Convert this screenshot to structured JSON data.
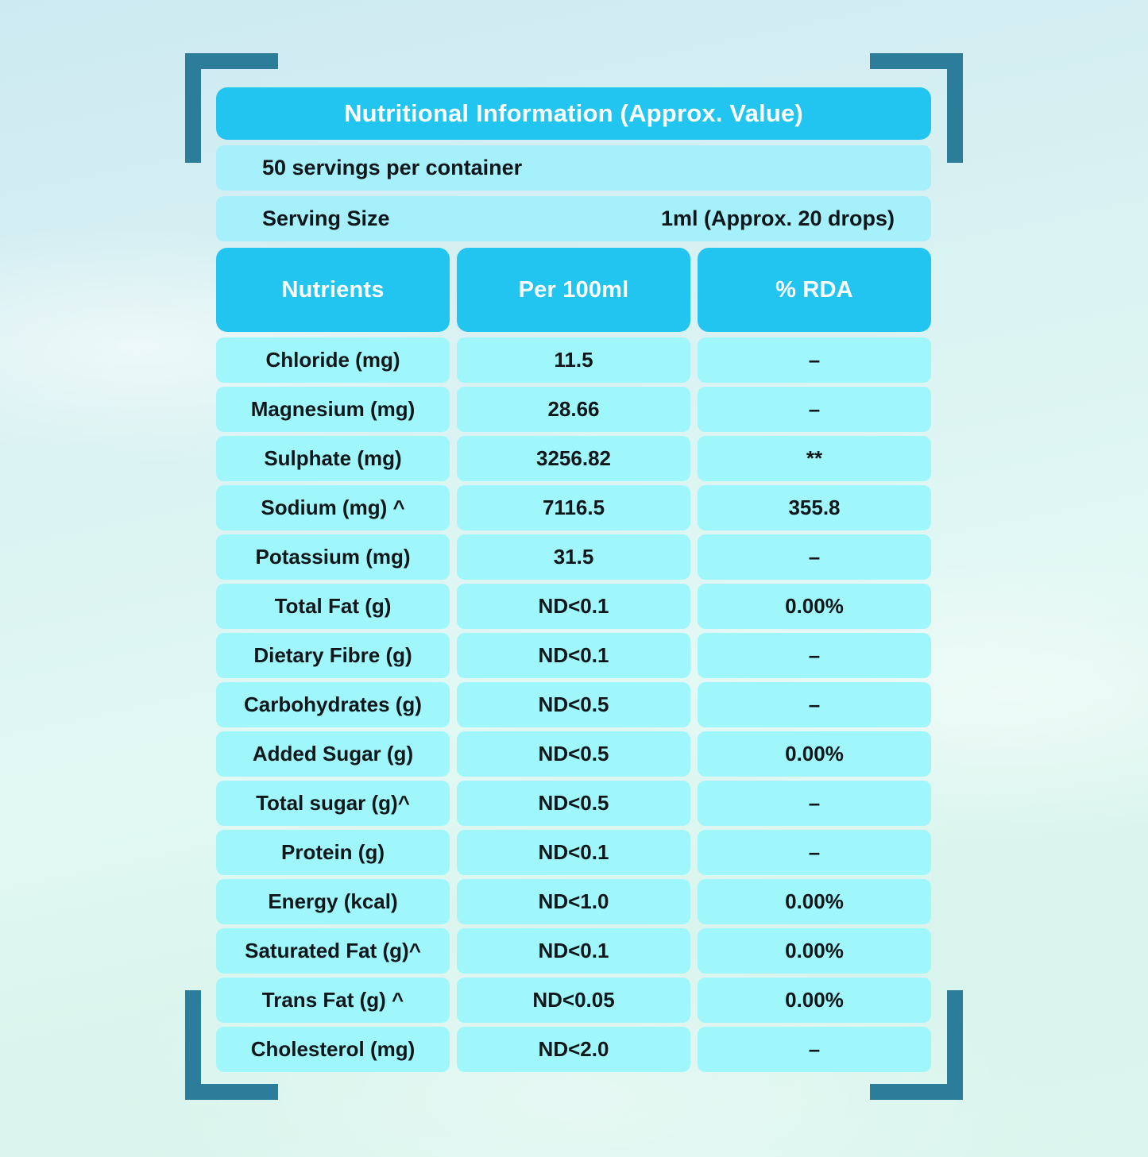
{
  "title": "Nutritional Information (Approx. Value)",
  "servings_line": "50 servings per container",
  "serving_size": {
    "label": "Serving Size",
    "value": "1ml (Approx. 20 drops)"
  },
  "columns": [
    "Nutrients",
    "Per 100ml",
    "% RDA"
  ],
  "rows": [
    {
      "nutrient": "Chloride (mg)",
      "per_100ml": "11.5",
      "rda": "–"
    },
    {
      "nutrient": "Magnesium (mg)",
      "per_100ml": "28.66",
      "rda": "–"
    },
    {
      "nutrient": "Sulphate (mg)",
      "per_100ml": "3256.82",
      "rda": "**"
    },
    {
      "nutrient": "Sodium (mg) ^",
      "per_100ml": "7116.5",
      "rda": "355.8"
    },
    {
      "nutrient": "Potassium (mg)",
      "per_100ml": "31.5",
      "rda": "–"
    },
    {
      "nutrient": "Total Fat (g)",
      "per_100ml": "ND<0.1",
      "rda": "0.00%"
    },
    {
      "nutrient": "Dietary Fibre (g)",
      "per_100ml": "ND<0.1",
      "rda": "–"
    },
    {
      "nutrient": "Carbohydrates (g)",
      "per_100ml": "ND<0.5",
      "rda": "–"
    },
    {
      "nutrient": "Added Sugar (g)",
      "per_100ml": "ND<0.5",
      "rda": "0.00%"
    },
    {
      "nutrient": "Total sugar (g)^",
      "per_100ml": "ND<0.5",
      "rda": "–"
    },
    {
      "nutrient": "Protein (g)",
      "per_100ml": "ND<0.1",
      "rda": "–"
    },
    {
      "nutrient": "Energy (kcal)",
      "per_100ml": "ND<1.0",
      "rda": "0.00%"
    },
    {
      "nutrient": "Saturated Fat (g)^",
      "per_100ml": "ND<0.1",
      "rda": "0.00%"
    },
    {
      "nutrient": "Trans Fat (g) ^",
      "per_100ml": "ND<0.05",
      "rda": "0.00%"
    },
    {
      "nutrient": "Cholesterol (mg)",
      "per_100ml": "ND<2.0",
      "rda": "–"
    }
  ],
  "colors": {
    "header_cyan": "#22c4f0",
    "row_aqua": "#9ff7fb",
    "info_row_aqua": "#a5f0fa",
    "bracket_teal": "#2b7d99",
    "text_dark": "#0f171b",
    "text_light": "#ffffff"
  }
}
